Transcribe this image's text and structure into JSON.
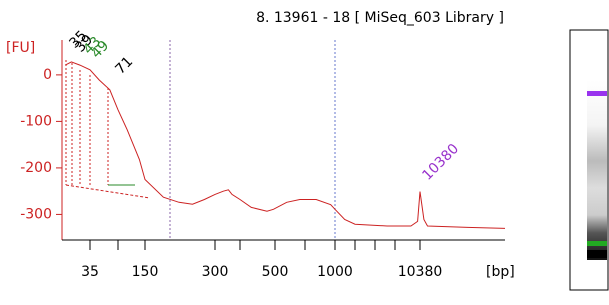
{
  "chart_data": {
    "type": "line",
    "title": "8. 13961 - 18  [ MiSeq_603 Library ]",
    "y_label": "[FU]",
    "x_label": "[bp]",
    "color": "#cc2222",
    "x": [
      26,
      28,
      31,
      35,
      45,
      60,
      75,
      95,
      130,
      150,
      180,
      210,
      240,
      270,
      300,
      330,
      350,
      365,
      400,
      430,
      475,
      495,
      570,
      660,
      800,
      950,
      1000,
      1400,
      2000,
      5000,
      9000,
      10000,
      10380,
      10700,
      11000,
      15000,
      20000
    ],
    "values": [
      21,
      28,
      21,
      11,
      -11,
      -32,
      -75,
      -118,
      -182,
      -225,
      -263,
      -274,
      -278,
      -268,
      -257,
      -250,
      -247,
      -257,
      -268,
      -285,
      -293,
      -289,
      -274,
      -268,
      -268,
      -279,
      -289,
      -311,
      -321,
      -325,
      -325,
      -315,
      -251,
      -311,
      -325,
      -328,
      -330
    ],
    "xlim": [
      25,
      20000
    ],
    "xticks": [
      35,
      150,
      300,
      500,
      1000,
      10380
    ],
    "xminorticks": [
      75,
      400,
      700,
      2000,
      3000,
      7000
    ],
    "ylim": [
      -355,
      75
    ],
    "yticks": [
      0,
      -100,
      -200,
      -300
    ],
    "peak_labels": [
      {
        "text": "35",
        "color": "#000000"
      },
      {
        "text": "39",
        "color": "#000000"
      },
      {
        "text": "43",
        "color": "#2a8a2a"
      },
      {
        "text": "49",
        "color": "#2a8a2a"
      },
      {
        "text": "71",
        "color": "#000000"
      },
      {
        "text": "10380",
        "color": "#9933cc"
      }
    ]
  }
}
